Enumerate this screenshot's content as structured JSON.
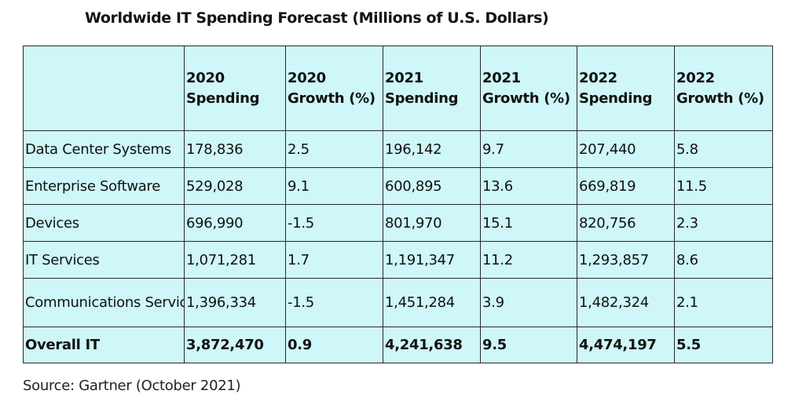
{
  "title": "Worldwide IT Spending Forecast (Millions of U.S. Dollars)",
  "source": "Source: Gartner (October 2021)",
  "colors": {
    "table_background": "#cff6f8",
    "border": "#2a2a2a"
  },
  "chart_data": {
    "type": "table",
    "title": "Worldwide IT Spending Forecast (Millions of U.S. Dollars)",
    "columns": [
      "",
      "2020 Spending",
      "2020 Growth (%)",
      "2021 Spending",
      "2021 Growth (%)",
      "2022 Spending",
      "2022 Growth (%)"
    ],
    "rows": [
      [
        "Data Center Systems",
        "178,836",
        "2.5",
        "196,142",
        "9.7",
        "207,440",
        "5.8"
      ],
      [
        "Enterprise Software",
        "529,028",
        "9.1",
        "600,895",
        "13.6",
        "669,819",
        "11.5"
      ],
      [
        "Devices",
        "696,990",
        "-1.5",
        "801,970",
        "15.1",
        "820,756",
        "2.3"
      ],
      [
        "IT Services",
        "1,071,281",
        "1.7",
        "1,191,347",
        "11.2",
        "1,293,857",
        "8.6"
      ],
      [
        "Communications Services",
        "1,396,334",
        "-1.5",
        "1,451,284",
        "3.9",
        "1,482,324",
        "2.1"
      ],
      [
        "Overall IT",
        "3,872,470",
        "0.9",
        "4,241,638",
        "9.5",
        "4,474,197",
        "5.5"
      ]
    ]
  }
}
